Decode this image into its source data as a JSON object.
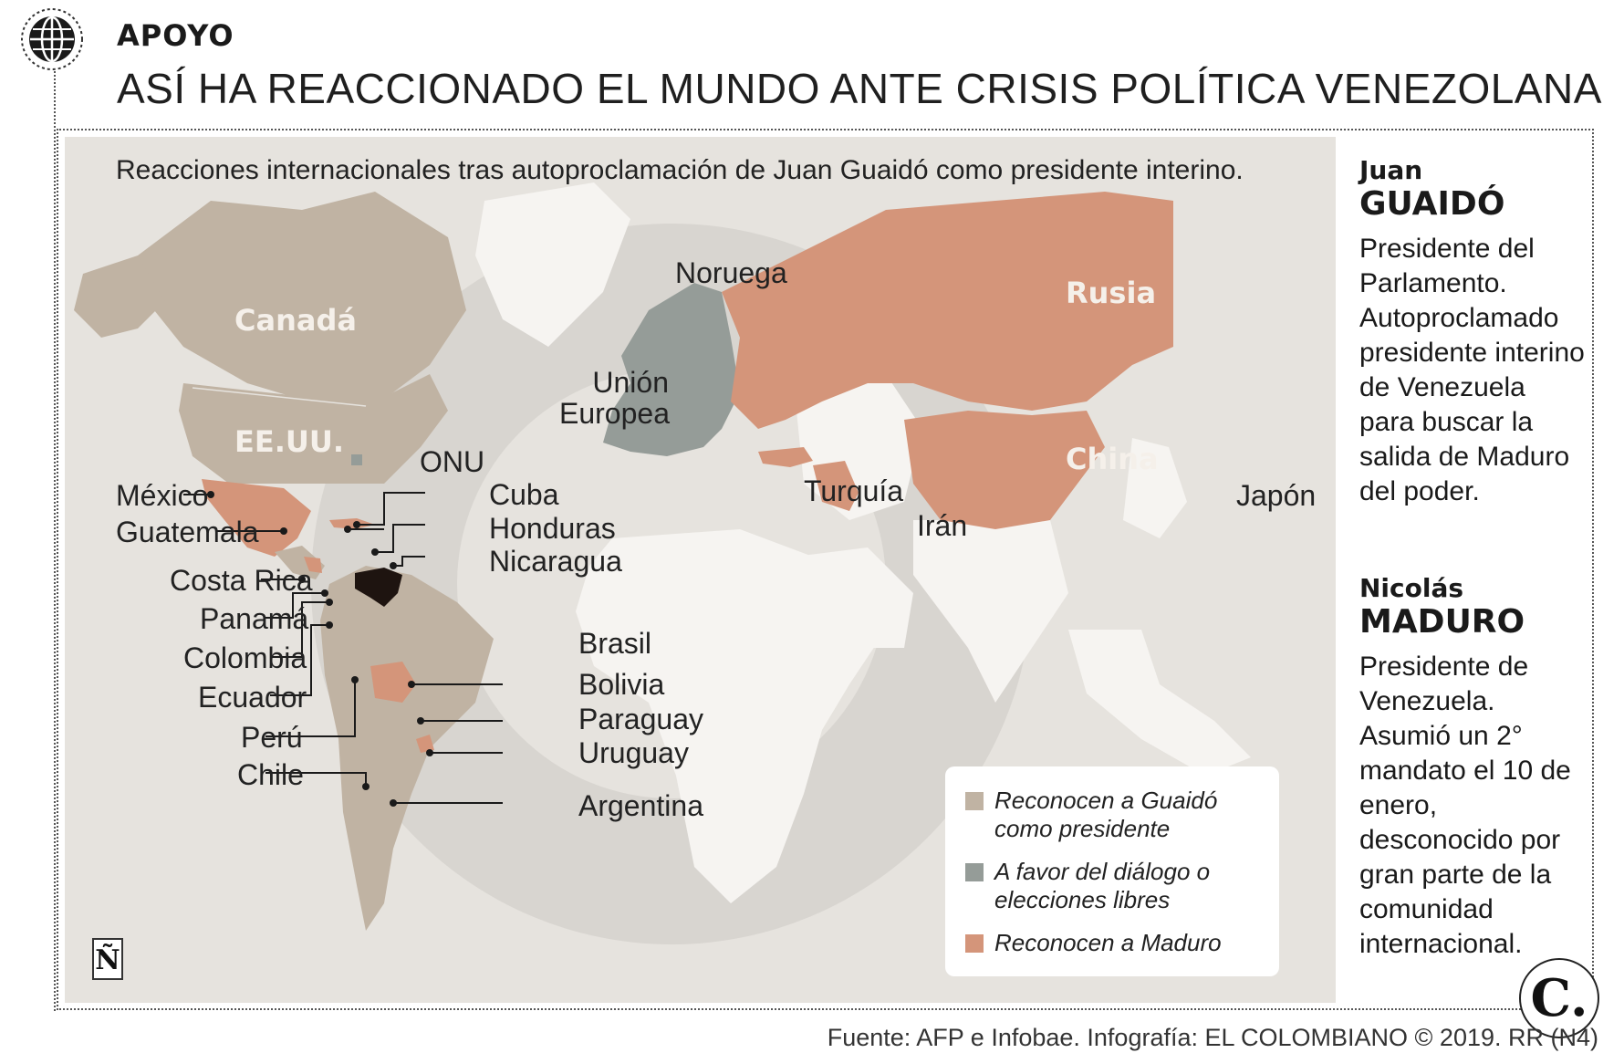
{
  "header": {
    "kicker": "APOYO",
    "headline": "ASÍ HA REACCIONADO EL MUNDO ANTE CRISIS POLÍTICA VENEZOLANA",
    "globe_icon": "globe-icon"
  },
  "map": {
    "subtitle": "Reacciones internacionales tras autoproclamación de Juan Guaidó como presidente interino.",
    "region_labels": {
      "canada": "Canadá",
      "usa": "EE.UU.",
      "russia": "Rusia",
      "china": "China"
    },
    "country_labels": {
      "noruega": "Noruega",
      "union_europea": "Unión Europea",
      "turquia": "Turquía",
      "iran": "Irán",
      "japon": "Japón",
      "onu": "ONU",
      "mexico": "México",
      "guatemala": "Guatemala",
      "costa_rica": "Costa Rica",
      "panama": "Panamá",
      "colombia": "Colombia",
      "ecuador": "Ecuador",
      "peru": "Perú",
      "chile": "Chile",
      "cuba": "Cuba",
      "honduras": "Honduras",
      "nicaragua": "Nicaragua",
      "brasil": "Brasil",
      "bolivia": "Bolivia",
      "paraguay": "Paraguay",
      "uruguay": "Uruguay",
      "argentina": "Argentina"
    },
    "legend": [
      {
        "label": "Reconocen a Guaidó como presidente",
        "color": "#c0b3a3"
      },
      {
        "label": "A favor del diálogo o elecciones libres",
        "color": "#959c98"
      },
      {
        "label": "Reconocen a Maduro",
        "color": "#d4957a"
      }
    ],
    "colors": {
      "guaido": "#c0b3a3",
      "dialogo": "#959c98",
      "maduro": "#d4957a",
      "venezuela": "#1e1410",
      "background": "#e6e3de",
      "land_other": "#f6f4f1"
    },
    "logo_letter": "Ñ"
  },
  "sidebar": {
    "guaido": {
      "first_name": "Juan",
      "last_name": "GUAIDÓ",
      "description": "Presidente del Parlamento. Autoproclamado presidente interino de Venezuela para buscar la salida de Maduro del poder."
    },
    "maduro": {
      "first_name": "Nicolás",
      "last_name": "MADURO",
      "description": "Presidente de Venezuela. Asumió un 2° mandato el 10 de enero, desconocido por gran parte de la comunidad internacional."
    }
  },
  "footer": {
    "source": "Fuente: AFP e Infobae. Infografía: EL COLOMBIANO © 2019. RR (N4)",
    "brand_letter": "C."
  }
}
